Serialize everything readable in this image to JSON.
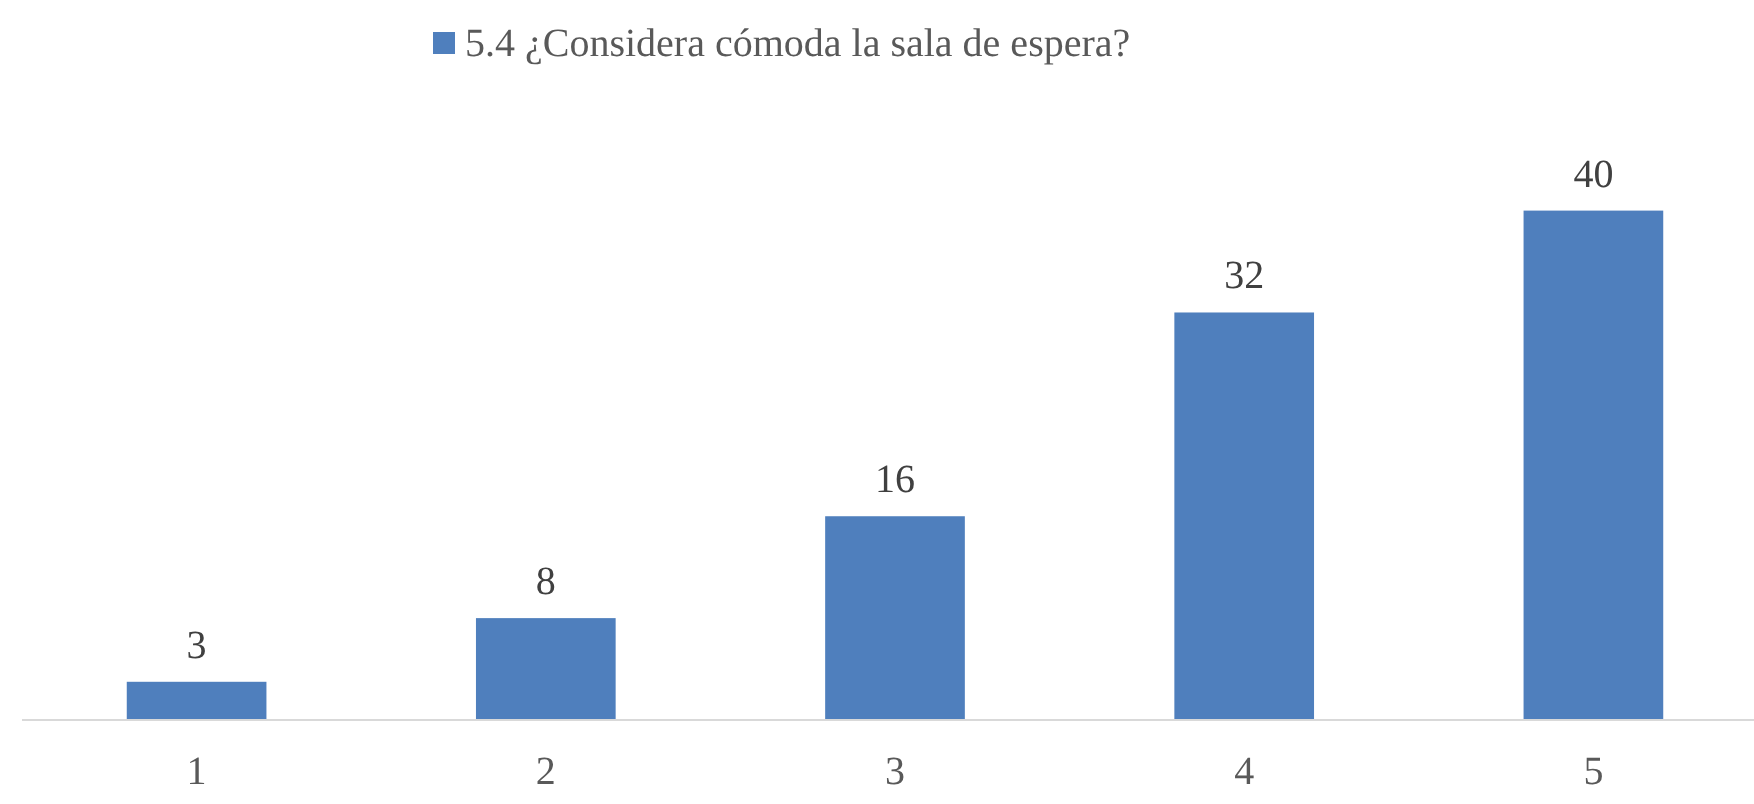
{
  "chart_data": {
    "type": "bar",
    "categories": [
      "1",
      "2",
      "3",
      "4",
      "5"
    ],
    "series": [
      {
        "name": "5.4 ¿Considera cómoda la sala de espera?",
        "color": "#4f7fbd",
        "values": [
          3,
          8,
          16,
          32,
          40
        ]
      }
    ],
    "data_labels": true,
    "legend": "top"
  }
}
